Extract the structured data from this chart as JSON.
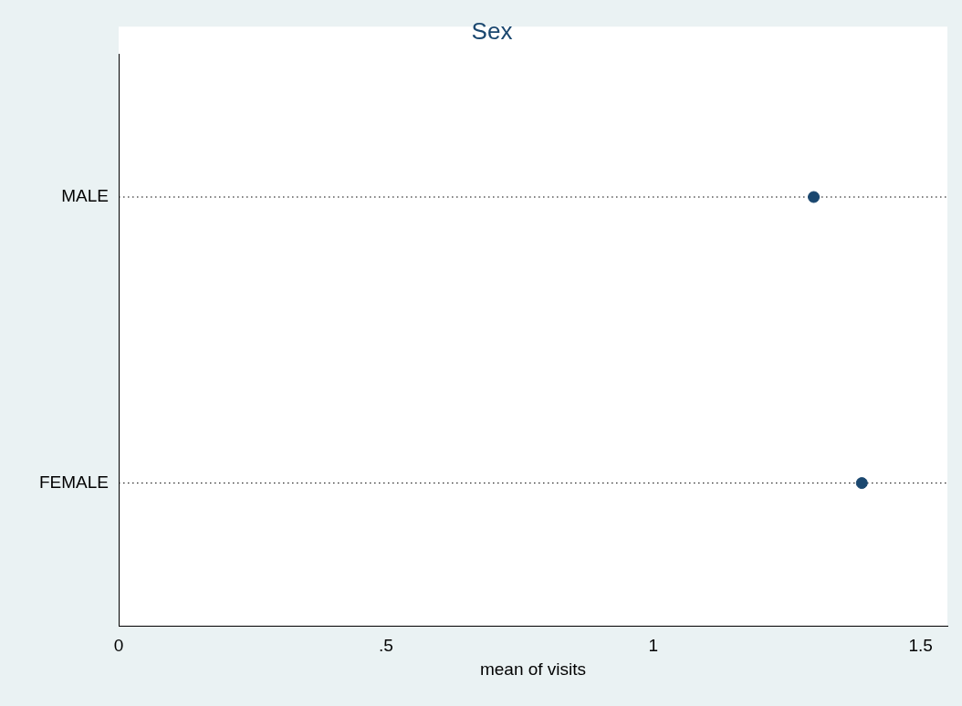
{
  "chart_data": {
    "type": "scatter",
    "title": "Sex",
    "xlabel": "mean of visits",
    "orientation": "horizontal",
    "categories": [
      "MALE",
      "FEMALE"
    ],
    "series": [
      {
        "color": "#1a476f",
        "values": [
          1.3,
          1.39
        ]
      }
    ],
    "xlim": [
      0,
      1.55
    ],
    "xticks": [
      0,
      {
        "value": 0.5,
        "label": ".5"
      },
      1,
      1.5
    ],
    "grid": "y",
    "marker": "circle",
    "legend": false
  }
}
